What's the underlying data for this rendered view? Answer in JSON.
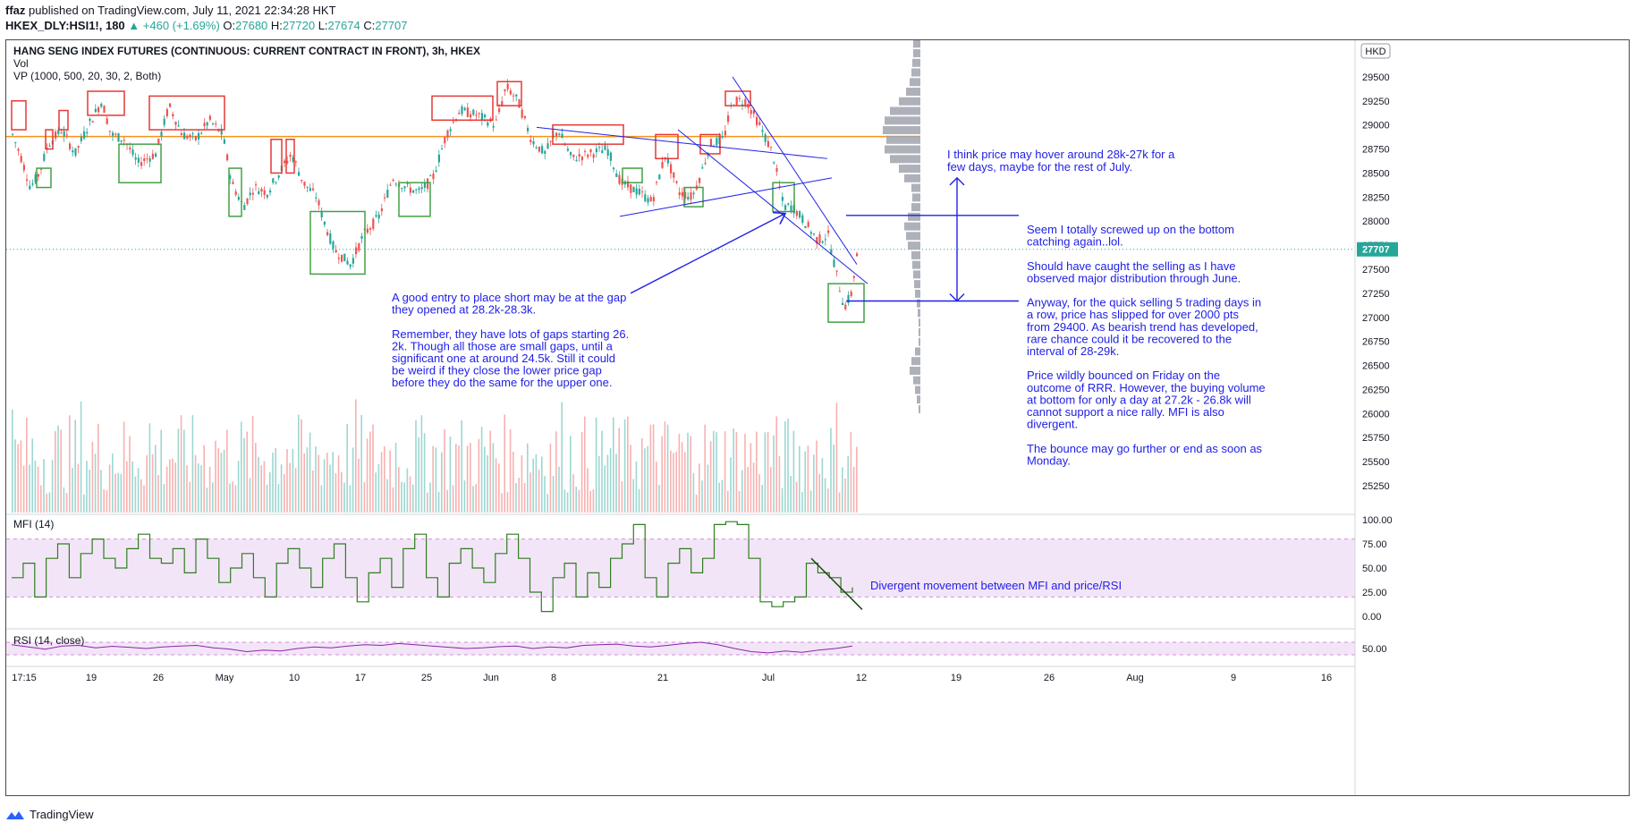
{
  "header": {
    "author": "ffaz",
    "published": "published on TradingView.com, July 11, 2021 22:34:28 HKT",
    "symbol": "HKEX_DLY:HSI1!, 180",
    "change": "▲ +460 (+1.69%)",
    "ohlc": [
      {
        "label": "O:",
        "value": "27680"
      },
      {
        "label": "H:",
        "value": "27720"
      },
      {
        "label": "L:",
        "value": "27674"
      },
      {
        "label": "C:",
        "value": "27707"
      }
    ],
    "last": "27707"
  },
  "legend": {
    "title": "HANG SENG INDEX FUTURES (CONTINUOUS: CURRENT CONTRACT IN FRONT), 3h, HKEX",
    "vol": "Vol",
    "vp": "VP (1000, 500, 20, 30, 2, Both)",
    "currency": "HKD"
  },
  "colors": {
    "up": "#26a69a",
    "down": "#ef5350",
    "drawing": "#2121e6",
    "box_red": "#e53935",
    "box_green": "#43a047",
    "orange": "#f7931a",
    "mfi": "#2e7d1f",
    "rsi": "#8e24aa",
    "band": "#f3e5f8",
    "vp": "#a0a3ad"
  },
  "chart_data": [
    {
      "type": "candlestick",
      "title": "HANG SENG INDEX FUTURES (CONTINUOUS: CURRENT CONTRACT IN FRONT), 3h, HKEX",
      "y_ticks": [
        29750,
        29500,
        29250,
        29000,
        28750,
        28500,
        28250,
        28000,
        27750,
        27500,
        27250,
        27000,
        26750,
        26500,
        26250,
        26000,
        25750,
        25500,
        25250
      ],
      "ylim": [
        25100,
        29850
      ],
      "x_ticks": [
        "17:15",
        "19",
        "26",
        "May",
        "10",
        "17",
        "25",
        "Jun",
        "8",
        "21",
        "Jul",
        "12",
        "19",
        "26",
        "Aug",
        "9",
        "16"
      ],
      "last_price": 27707,
      "orange_level": 28880,
      "path": [
        [
          0,
          28900
        ],
        [
          10,
          28650
        ],
        [
          20,
          28350
        ],
        [
          30,
          28500
        ],
        [
          40,
          28800
        ],
        [
          55,
          28950
        ],
        [
          70,
          28700
        ],
        [
          85,
          29000
        ],
        [
          100,
          29250
        ],
        [
          110,
          28900
        ],
        [
          125,
          28850
        ],
        [
          140,
          28600
        ],
        [
          160,
          28700
        ],
        [
          175,
          29200
        ],
        [
          190,
          28900
        ],
        [
          205,
          28850
        ],
        [
          220,
          29050
        ],
        [
          235,
          28900
        ],
        [
          245,
          28400
        ],
        [
          258,
          28150
        ],
        [
          270,
          28350
        ],
        [
          285,
          28300
        ],
        [
          298,
          28500
        ],
        [
          312,
          28700
        ],
        [
          325,
          28400
        ],
        [
          340,
          28250
        ],
        [
          348,
          28000
        ],
        [
          360,
          27700
        ],
        [
          378,
          27550
        ],
        [
          392,
          27850
        ],
        [
          410,
          28050
        ],
        [
          425,
          28450
        ],
        [
          440,
          28350
        ],
        [
          455,
          28300
        ],
        [
          470,
          28450
        ],
        [
          485,
          28900
        ],
        [
          500,
          29150
        ],
        [
          520,
          29100
        ],
        [
          540,
          29000
        ],
        [
          552,
          29400
        ],
        [
          565,
          29250
        ],
        [
          580,
          28850
        ],
        [
          595,
          28700
        ],
        [
          610,
          28950
        ],
        [
          625,
          28650
        ],
        [
          645,
          28700
        ],
        [
          665,
          28750
        ],
        [
          680,
          28400
        ],
        [
          700,
          28300
        ],
        [
          715,
          28200
        ],
        [
          730,
          28700
        ],
        [
          745,
          28300
        ],
        [
          760,
          28250
        ],
        [
          770,
          28500
        ],
        [
          780,
          28800
        ],
        [
          795,
          28850
        ],
        [
          805,
          29250
        ],
        [
          820,
          29250
        ],
        [
          835,
          29000
        ],
        [
          850,
          28700
        ],
        [
          862,
          28150
        ],
        [
          872,
          28150
        ],
        [
          885,
          28000
        ],
        [
          900,
          27800
        ],
        [
          912,
          27850
        ],
        [
          920,
          27500
        ],
        [
          930,
          27100
        ],
        [
          938,
          27250
        ],
        [
          945,
          27707
        ]
      ],
      "boxes_red": [
        [
          0,
          29250,
          16,
          28950
        ],
        [
          38,
          28950,
          46,
          28750
        ],
        [
          53,
          29150,
          63,
          28950
        ],
        [
          85,
          29350,
          126,
          29100
        ],
        [
          154,
          29300,
          238,
          28950
        ],
        [
          290,
          28850,
          302,
          28500
        ],
        [
          307,
          28850,
          316,
          28500
        ],
        [
          470,
          29300,
          538,
          29050
        ],
        [
          543,
          29450,
          570,
          29200
        ],
        [
          605,
          29000,
          684,
          28800
        ],
        [
          720,
          28900,
          745,
          28650
        ],
        [
          770,
          28900,
          792,
          28700
        ],
        [
          798,
          29350,
          826,
          29200
        ]
      ],
      "boxes_green": [
        [
          28,
          28550,
          44,
          28350
        ],
        [
          120,
          28800,
          167,
          28400
        ],
        [
          243,
          28550,
          257,
          28050
        ],
        [
          334,
          28100,
          395,
          27450
        ],
        [
          433,
          28400,
          468,
          28050
        ],
        [
          683,
          28550,
          705,
          28400
        ],
        [
          752,
          28350,
          773,
          28150
        ],
        [
          851,
          28400,
          875,
          28100
        ],
        [
          913,
          27350,
          953,
          26950
        ]
      ],
      "trendlines": [
        [
          587,
          28975,
          912,
          28650
        ],
        [
          680,
          28050,
          917,
          28450
        ],
        [
          745,
          28950,
          957,
          27350
        ],
        [
          806,
          29500,
          945,
          27550
        ]
      ],
      "annotation_lines": [
        [
          933,
          28060,
          1126,
          28060
        ],
        [
          933,
          27170,
          1126,
          27170
        ],
        [
          1057,
          28450,
          1057,
          27170
        ],
        [
          692,
          27250,
          865,
          28080
        ]
      ],
      "volume_profile": {
        "levels": [
          29850,
          29750,
          29650,
          29550,
          29450,
          29350,
          29250,
          29150,
          29050,
          28950,
          28850,
          28750,
          28650,
          28550,
          28450,
          28350,
          28250,
          28150,
          28050,
          27950,
          27850,
          27750,
          27650,
          27550,
          27450,
          27350,
          27250,
          27150,
          27050,
          26950,
          26850,
          26750,
          26650,
          26550,
          26450,
          26350,
          26250,
          26150,
          26050
        ],
        "values": [
          8,
          8,
          9,
          10,
          12,
          16,
          24,
          34,
          40,
          42,
          38,
          40,
          34,
          24,
          18,
          10,
          9,
          10,
          14,
          18,
          16,
          14,
          10,
          9,
          8,
          7,
          6,
          4,
          3,
          2,
          2,
          2,
          6,
          10,
          12,
          8,
          6,
          4,
          2
        ]
      }
    },
    {
      "type": "bar",
      "title": "Vol",
      "note": "volume histogram under price"
    },
    {
      "type": "line",
      "title": "MFI (14)",
      "y_ticks": [
        100,
        75,
        50,
        25,
        0
      ],
      "ylim": [
        -5,
        105
      ],
      "band": [
        20,
        80
      ],
      "values": [
        40,
        55,
        20,
        60,
        75,
        40,
        65,
        80,
        60,
        50,
        70,
        85,
        60,
        55,
        70,
        45,
        80,
        60,
        35,
        50,
        65,
        40,
        20,
        55,
        70,
        50,
        30,
        60,
        75,
        40,
        15,
        45,
        60,
        30,
        70,
        85,
        40,
        20,
        55,
        70,
        50,
        35,
        65,
        85,
        60,
        25,
        5,
        40,
        55,
        20,
        45,
        30,
        60,
        75,
        95,
        40,
        20,
        55,
        70,
        45,
        60,
        95,
        98,
        95,
        60,
        15,
        10,
        15,
        20,
        55,
        45,
        40,
        25,
        30
      ]
    },
    {
      "type": "line",
      "title": "RSI (14, close)",
      "y_ticks": [
        50
      ],
      "ylim": [
        10,
        90
      ],
      "band": [
        30,
        70
      ],
      "values": [
        62,
        55,
        48,
        58,
        60,
        52,
        57,
        54,
        50,
        55,
        58,
        60,
        52,
        48,
        40,
        45,
        42,
        50,
        55,
        52,
        58,
        62,
        60,
        66,
        62,
        58,
        54,
        50,
        52,
        56,
        58,
        50,
        55,
        52,
        60,
        62,
        64,
        58,
        55,
        60,
        66,
        70,
        62,
        50,
        40,
        36,
        42,
        38,
        45,
        50,
        58
      ]
    }
  ],
  "annotations": {
    "top_right": [
      "I think price may hover around 28k-27k for a",
      "few days, maybe for the rest of July."
    ],
    "right_block": [
      "Seem I totally screwed up on the bottom",
      "catching again..lol.",
      "",
      "Should have caught the selling as I have",
      "observed major distribution through June.",
      "",
      "Anyway, for the quick selling 5 trading days in",
      "a row, price has slipped for over 2000 pts",
      "from 29400. As bearish trend has developed,",
      "rare chance could it be recovered to the",
      "interval of 28-29k.",
      "",
      "Price wildly bounced on Friday on the",
      "outcome of RRR. However, the buying volume",
      "at bottom for only a day at 27.2k - 26.8k will",
      "cannot support a nice rally. MFI is also",
      "divergent.",
      "",
      "The bounce may go further or end as soon as",
      "Monday."
    ],
    "center_block": [
      "A good entry to place short may be at the gap",
      "they opened at 28.2k-28.3k.",
      "",
      "Remember, they have lots of gaps starting 26.",
      "2k. Though all those are small gaps, until a",
      "significant one at around 24.5k. Still it could",
      "be weird if they close the lower price gap",
      "before they do the same for the upper one."
    ],
    "mfi_note": "Divergent movement between MFI and price/RSI"
  },
  "footer": {
    "brand": "TradingView"
  }
}
